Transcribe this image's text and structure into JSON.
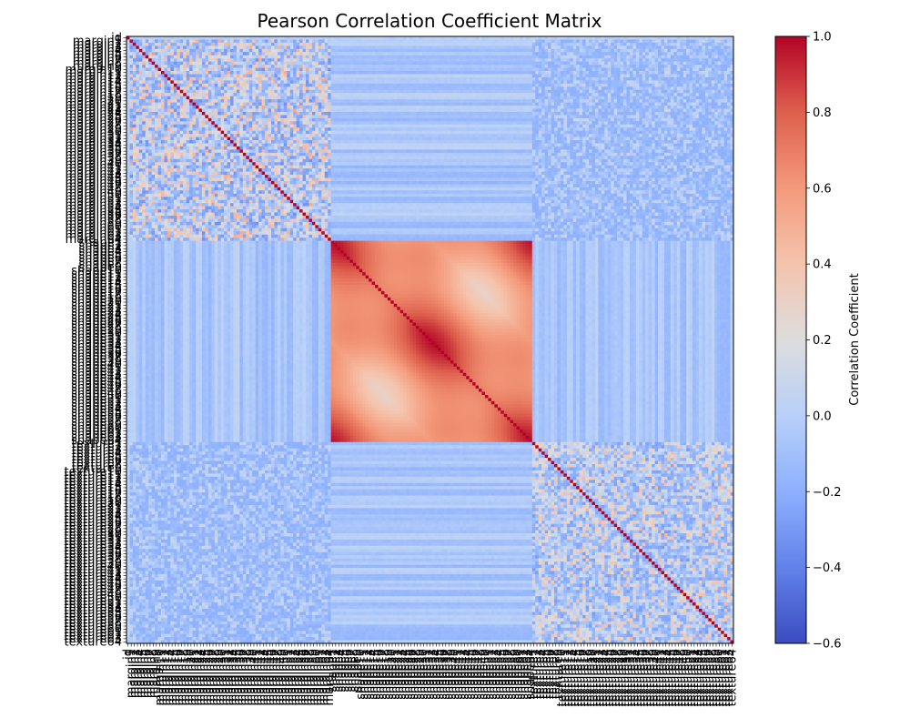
{
  "chart_data": {
    "type": "heatmap",
    "title": "Pearson Correlation Coefficient Matrix",
    "xlabel": "",
    "ylabel": "",
    "colormap": "coolwarm",
    "color_min": "#3b4cc0",
    "color_mid": "#dddddd",
    "color_max": "#b40426",
    "colorbar": {
      "label": "Correlation Coefficient",
      "vmin": -0.6,
      "vmax": 1.0,
      "ticks": [
        1.0,
        0.8,
        0.6,
        0.4,
        0.2,
        0.0,
        -0.2,
        -0.4,
        -0.6
      ],
      "tick_labels": [
        "1.0",
        "0.8",
        "0.6",
        "0.4",
        "0.2",
        "0.0",
        "−0.2",
        "−0.4",
        "−0.6"
      ]
    },
    "variables": {
      "first": "id",
      "groups": [
        {
          "prefix": "margin",
          "count": 64
        },
        {
          "prefix": "shape",
          "count": 64
        },
        {
          "prefix": "texture",
          "count": 64
        }
      ]
    },
    "blocks": {
      "diagonal": 1.0,
      "margin_margin": {
        "min": -0.4,
        "max": 0.8
      },
      "shape_shape": {
        "min": 0.3,
        "max": 1.0
      },
      "texture_texture": {
        "min": -0.4,
        "max": 0.6
      },
      "margin_shape": {
        "min": -0.2,
        "max": 0.1
      },
      "margin_texture": {
        "min": -0.3,
        "max": 0.3
      },
      "shape_texture": {
        "min": -0.2,
        "max": 0.1
      },
      "id_row": {
        "min": -0.1,
        "max": 0.1
      }
    }
  }
}
